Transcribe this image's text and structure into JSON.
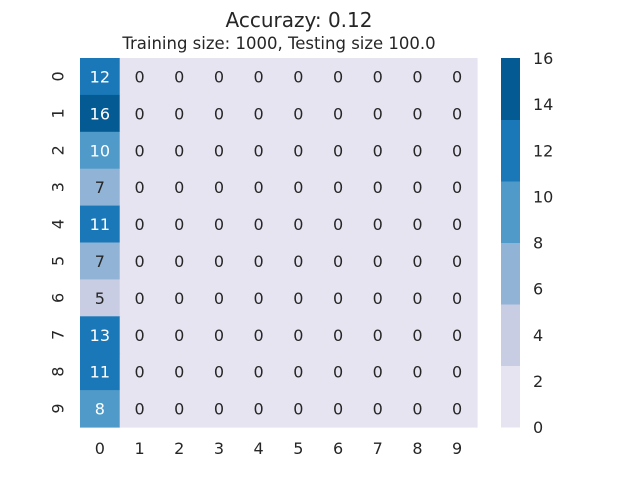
{
  "chart_data": {
    "type": "heatmap",
    "title": "Accurazy: 0.12",
    "subtitle": "Training size: 1000, Testing size 100.0",
    "x_ticks": [
      "0",
      "1",
      "2",
      "3",
      "4",
      "5",
      "6",
      "7",
      "8",
      "9"
    ],
    "y_ticks": [
      "0",
      "1",
      "2",
      "3",
      "4",
      "5",
      "6",
      "7",
      "8",
      "9"
    ],
    "values": [
      [
        12,
        0,
        0,
        0,
        0,
        0,
        0,
        0,
        0,
        0
      ],
      [
        16,
        0,
        0,
        0,
        0,
        0,
        0,
        0,
        0,
        0
      ],
      [
        10,
        0,
        0,
        0,
        0,
        0,
        0,
        0,
        0,
        0
      ],
      [
        7,
        0,
        0,
        0,
        0,
        0,
        0,
        0,
        0,
        0
      ],
      [
        11,
        0,
        0,
        0,
        0,
        0,
        0,
        0,
        0,
        0
      ],
      [
        7,
        0,
        0,
        0,
        0,
        0,
        0,
        0,
        0,
        0
      ],
      [
        5,
        0,
        0,
        0,
        0,
        0,
        0,
        0,
        0,
        0
      ],
      [
        13,
        0,
        0,
        0,
        0,
        0,
        0,
        0,
        0,
        0
      ],
      [
        11,
        0,
        0,
        0,
        0,
        0,
        0,
        0,
        0,
        0
      ],
      [
        8,
        0,
        0,
        0,
        0,
        0,
        0,
        0,
        0,
        0
      ]
    ],
    "vmin": 0,
    "vmax": 16,
    "colorbar_ticks": [
      "0",
      "2",
      "4",
      "6",
      "8",
      "10",
      "12",
      "14",
      "16"
    ],
    "palette": [
      "#e7e4f1",
      "#c9cde4",
      "#90b3d6",
      "#4f9ac8",
      "#1a78b8",
      "#045b93"
    ],
    "annotation_dark": "#262626",
    "annotation_light": "#ffffff",
    "tick_color": "#262626",
    "colorbar_position": "right"
  }
}
